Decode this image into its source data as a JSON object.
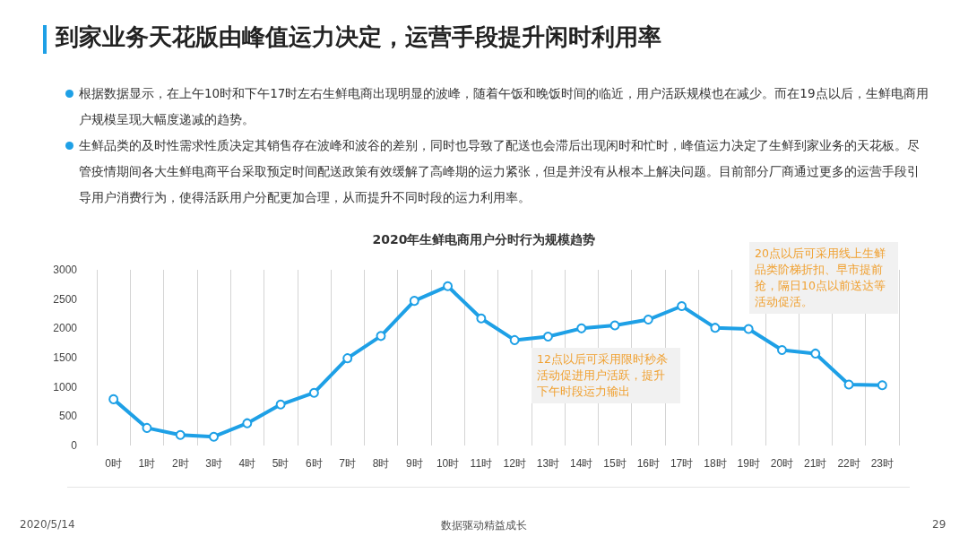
{
  "chart_data": {
    "type": "line",
    "title": "到家业务天花版由峰值运力决定，运营手段提升闲时利用率",
    "subtitle": "2020年生鲜电商用户分时行为规模趋势",
    "categories": [
      "0时",
      "1时",
      "2时",
      "3时",
      "4时",
      "5时",
      "6时",
      "7时",
      "8时",
      "9时",
      "10时",
      "11时",
      "12时",
      "13时",
      "14时",
      "15时",
      "16时",
      "17时",
      "18时",
      "19时",
      "20时",
      "21时",
      "22时",
      "23时"
    ],
    "series": [
      {
        "color": "#1ea0e6",
        "values": [
          790,
          300,
          180,
          150,
          380,
          700,
          900,
          1490,
          1870,
          2470,
          2720,
          2170,
          1800,
          1860,
          2000,
          2050,
          2150,
          2380,
          2010,
          1990,
          1630,
          1570,
          1040,
          1030
        ]
      }
    ],
    "ylim": [
      0,
      3000
    ],
    "yticks": [
      0,
      500,
      1000,
      1500,
      2000,
      2500,
      3000
    ],
    "grid": "x",
    "marker": "circle",
    "line_style": "solid",
    "annotations": [
      "根据数据显示，在上午10时和下午17时左右生鲜电商出现明显的波峰，随着午饭和晚饭时间的临近，用户活跃规模也在减少。而在19点以后，生鲜电商用户规模呈现大幅度递减的趋势。",
      "生鲜品类的及时性需求性质决定其销售存在波峰和波谷的差别，同时也导致了配送也会滞后出现闲时和忙时，峰值运力决定了生鲜到家业务的天花板。尽管疫情期间各大生鲜电商平台采取预定时间配送政策有效缓解了高峰期的运力紧张，但是并没有从根本上解决问题。目前部分厂商通过更多的运营手段引导用户消费行为，使得活跃用户分配更加合理，从而提升不同时段的运力利用率。",
      "12点以后可采用限时秒杀活动促进用户活跃，提升下午时段运力输出",
      "20点以后可采用线上生鲜品类阶梯折扣、早市提前抢，隔日10点以前送达等活动促活。",
      "2020/5/14",
      "数据驱动精益成长",
      "29"
    ]
  }
}
